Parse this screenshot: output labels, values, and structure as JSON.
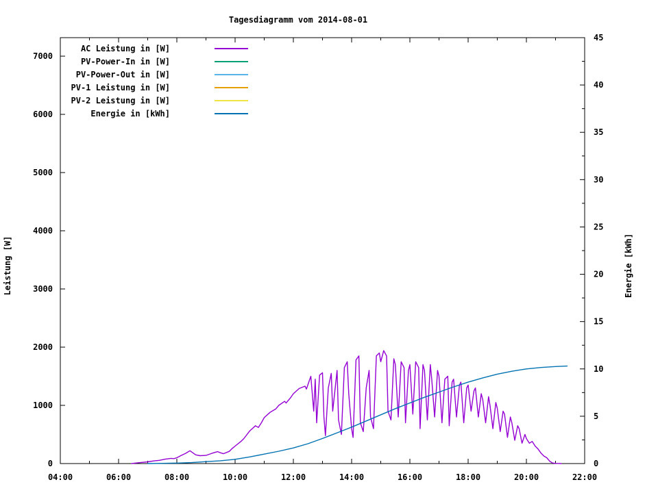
{
  "title": "Tagesdiagramm vom 2014-08-01",
  "chart_data": {
    "type": "line",
    "title": "Tagesdiagramm vom 2014-08-01",
    "grid": false,
    "legend_position": "top-left-inside",
    "x": {
      "min_hour": 4,
      "max_hour": 22,
      "major_step_hours": 2,
      "minor_step_hours": 1,
      "tick_labels": [
        "04:00",
        "06:00",
        "08:00",
        "10:00",
        "12:00",
        "14:00",
        "16:00",
        "18:00",
        "20:00",
        "22:00"
      ]
    },
    "y_left": {
      "label": "Leistung [W]",
      "ticks": [
        0,
        1000,
        2000,
        3000,
        4000,
        5000,
        6000,
        7000
      ],
      "tick_labels": [
        "0",
        "1000",
        "2000",
        "3000",
        "4000",
        "5000",
        "6000",
        "7000"
      ],
      "axis_max": 7318
    },
    "y_right": {
      "label": "Energie [kWh]",
      "ticks": [
        0,
        5,
        10,
        15,
        20,
        25,
        30,
        35,
        40,
        45
      ],
      "tick_labels": [
        "0",
        "5",
        "10",
        "15",
        "20",
        "25",
        "30",
        "35",
        "40",
        "45"
      ],
      "minor_step": 2.5,
      "axis_max": 45
    },
    "series": [
      {
        "key": "ac-leistung",
        "name": "AC Leistung in [W]",
        "color": "#9400d3",
        "axis": "left",
        "points": [
          [
            6.45,
            0
          ],
          [
            6.6,
            10
          ],
          [
            6.8,
            20
          ],
          [
            7.0,
            30
          ],
          [
            7.2,
            45
          ],
          [
            7.4,
            55
          ],
          [
            7.6,
            75
          ],
          [
            7.8,
            90
          ],
          [
            7.9,
            85
          ],
          [
            8.0,
            100
          ],
          [
            8.15,
            140
          ],
          [
            8.3,
            175
          ],
          [
            8.45,
            220
          ],
          [
            8.55,
            185
          ],
          [
            8.65,
            150
          ],
          [
            8.8,
            135
          ],
          [
            9.0,
            140
          ],
          [
            9.2,
            175
          ],
          [
            9.4,
            205
          ],
          [
            9.5,
            185
          ],
          [
            9.6,
            170
          ],
          [
            9.8,
            210
          ],
          [
            9.9,
            260
          ],
          [
            10.0,
            300
          ],
          [
            10.2,
            380
          ],
          [
            10.3,
            430
          ],
          [
            10.5,
            560
          ],
          [
            10.7,
            650
          ],
          [
            10.8,
            620
          ],
          [
            10.9,
            700
          ],
          [
            11.0,
            790
          ],
          [
            11.2,
            880
          ],
          [
            11.4,
            940
          ],
          [
            11.5,
            1000
          ],
          [
            11.7,
            1070
          ],
          [
            11.75,
            1040
          ],
          [
            11.9,
            1130
          ],
          [
            12.0,
            1200
          ],
          [
            12.2,
            1290
          ],
          [
            12.4,
            1330
          ],
          [
            12.45,
            1280
          ],
          [
            12.55,
            1430
          ],
          [
            12.6,
            1500
          ],
          [
            12.7,
            900
          ],
          [
            12.75,
            1450
          ],
          [
            12.8,
            700
          ],
          [
            12.9,
            1520
          ],
          [
            13.0,
            1560
          ],
          [
            13.05,
            800
          ],
          [
            13.1,
            480
          ],
          [
            13.2,
            1300
          ],
          [
            13.3,
            1550
          ],
          [
            13.35,
            900
          ],
          [
            13.5,
            1600
          ],
          [
            13.55,
            750
          ],
          [
            13.65,
            500
          ],
          [
            13.75,
            1650
          ],
          [
            13.85,
            1750
          ],
          [
            13.9,
            1200
          ],
          [
            14.0,
            600
          ],
          [
            14.05,
            450
          ],
          [
            14.15,
            1780
          ],
          [
            14.25,
            1850
          ],
          [
            14.3,
            700
          ],
          [
            14.4,
            550
          ],
          [
            14.5,
            1300
          ],
          [
            14.6,
            1600
          ],
          [
            14.65,
            800
          ],
          [
            14.75,
            600
          ],
          [
            14.85,
            1850
          ],
          [
            14.95,
            1900
          ],
          [
            15.0,
            1750
          ],
          [
            15.1,
            1940
          ],
          [
            15.2,
            1850
          ],
          [
            15.25,
            900
          ],
          [
            15.35,
            750
          ],
          [
            15.45,
            1800
          ],
          [
            15.5,
            1700
          ],
          [
            15.6,
            800
          ],
          [
            15.7,
            1750
          ],
          [
            15.8,
            1650
          ],
          [
            15.85,
            700
          ],
          [
            15.95,
            1600
          ],
          [
            16.0,
            1700
          ],
          [
            16.1,
            850
          ],
          [
            16.2,
            1750
          ],
          [
            16.3,
            1650
          ],
          [
            16.35,
            600
          ],
          [
            16.45,
            1700
          ],
          [
            16.5,
            1600
          ],
          [
            16.6,
            750
          ],
          [
            16.7,
            1700
          ],
          [
            16.75,
            1450
          ],
          [
            16.85,
            800
          ],
          [
            16.95,
            1600
          ],
          [
            17.0,
            1500
          ],
          [
            17.1,
            700
          ],
          [
            17.2,
            1450
          ],
          [
            17.3,
            1500
          ],
          [
            17.35,
            650
          ],
          [
            17.45,
            1400
          ],
          [
            17.5,
            1450
          ],
          [
            17.6,
            800
          ],
          [
            17.7,
            1350
          ],
          [
            17.75,
            1400
          ],
          [
            17.85,
            700
          ],
          [
            17.95,
            1300
          ],
          [
            18.0,
            1350
          ],
          [
            18.1,
            900
          ],
          [
            18.2,
            1250
          ],
          [
            18.25,
            1300
          ],
          [
            18.35,
            800
          ],
          [
            18.45,
            1200
          ],
          [
            18.5,
            1100
          ],
          [
            18.6,
            700
          ],
          [
            18.7,
            1150
          ],
          [
            18.75,
            1000
          ],
          [
            18.85,
            600
          ],
          [
            18.95,
            1050
          ],
          [
            19.0,
            950
          ],
          [
            19.1,
            550
          ],
          [
            19.2,
            900
          ],
          [
            19.25,
            850
          ],
          [
            19.35,
            450
          ],
          [
            19.45,
            800
          ],
          [
            19.5,
            700
          ],
          [
            19.6,
            400
          ],
          [
            19.7,
            650
          ],
          [
            19.75,
            600
          ],
          [
            19.85,
            350
          ],
          [
            19.95,
            500
          ],
          [
            20.0,
            430
          ],
          [
            20.1,
            350
          ],
          [
            20.2,
            380
          ],
          [
            20.3,
            300
          ],
          [
            20.4,
            250
          ],
          [
            20.5,
            180
          ],
          [
            20.6,
            130
          ],
          [
            20.7,
            100
          ],
          [
            20.8,
            40
          ],
          [
            20.9,
            10
          ],
          [
            21.0,
            3
          ],
          [
            21.1,
            2
          ],
          [
            21.2,
            0
          ]
        ]
      },
      {
        "key": "pv-power-in",
        "name": "PV-Power-In in [W]",
        "color": "#009e73",
        "axis": "left",
        "points": []
      },
      {
        "key": "pv-power-out",
        "name": "PV-Power-Out in [W]",
        "color": "#56b4e9",
        "axis": "left",
        "points": []
      },
      {
        "key": "pv1-leistung",
        "name": "PV-1 Leistung in [W]",
        "color": "#e69f00",
        "axis": "left",
        "points": []
      },
      {
        "key": "pv2-leistung",
        "name": "PV-2 Leistung in [W]",
        "color": "#f0e442",
        "axis": "left",
        "points": []
      },
      {
        "key": "energie",
        "name": "Energie in [kWh]",
        "color": "#0072b2",
        "axis": "right",
        "points": [
          [
            7.0,
            0
          ],
          [
            7.5,
            0.02
          ],
          [
            8.0,
            0.05
          ],
          [
            8.5,
            0.1
          ],
          [
            9.0,
            0.2
          ],
          [
            9.5,
            0.3
          ],
          [
            10.0,
            0.45
          ],
          [
            10.5,
            0.7
          ],
          [
            11.0,
            1.0
          ],
          [
            11.5,
            1.3
          ],
          [
            12.0,
            1.65
          ],
          [
            12.5,
            2.1
          ],
          [
            13.0,
            2.65
          ],
          [
            13.5,
            3.25
          ],
          [
            14.0,
            3.85
          ],
          [
            14.5,
            4.5
          ],
          [
            15.0,
            5.15
          ],
          [
            15.5,
            5.8
          ],
          [
            16.0,
            6.4
          ],
          [
            16.5,
            7.0
          ],
          [
            17.0,
            7.55
          ],
          [
            17.5,
            8.1
          ],
          [
            18.0,
            8.6
          ],
          [
            18.5,
            9.05
          ],
          [
            19.0,
            9.45
          ],
          [
            19.5,
            9.75
          ],
          [
            20.0,
            10.0
          ],
          [
            20.5,
            10.15
          ],
          [
            21.0,
            10.25
          ],
          [
            21.4,
            10.3
          ]
        ]
      }
    ]
  }
}
